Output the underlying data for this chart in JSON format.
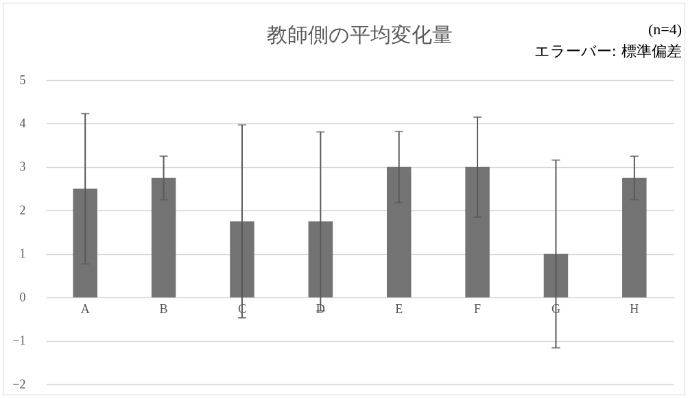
{
  "chart_data": {
    "type": "bar",
    "title": "教師側の平均変化量",
    "annotations": [
      "(n=4)",
      "エラーバー: 標準偏差"
    ],
    "categories": [
      "A",
      "B",
      "C",
      "D",
      "E",
      "F",
      "G",
      "H"
    ],
    "values": [
      2.5,
      2.75,
      1.75,
      1.75,
      3,
      3,
      1,
      2.75
    ],
    "errors": [
      1.73,
      0.5,
      2.22,
      2.06,
      0.82,
      1.15,
      2.16,
      0.5
    ],
    "color": "#737373",
    "ylim": [
      -2,
      5
    ],
    "yticks": [
      -2,
      -1,
      0,
      1,
      2,
      3,
      4,
      5
    ],
    "grid": "y"
  }
}
